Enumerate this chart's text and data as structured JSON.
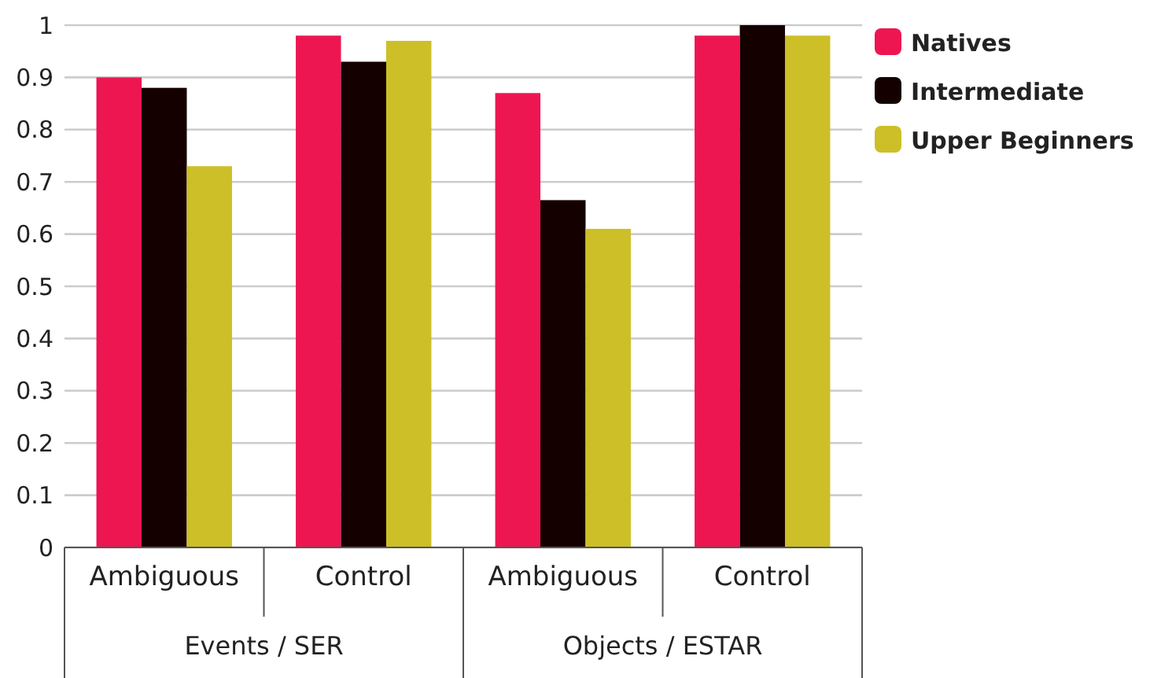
{
  "chart_data": {
    "type": "bar",
    "categories": [
      "Ambiguous",
      "Control",
      "Ambiguous",
      "Control"
    ],
    "series": [
      {
        "name": "Natives",
        "color": "#ed1651",
        "values": [
          0.9,
          0.98,
          0.87,
          0.98
        ]
      },
      {
        "name": "Intermediate",
        "color": "#150000",
        "values": [
          0.88,
          0.93,
          0.665,
          1.0
        ]
      },
      {
        "name": "Upper Beginners",
        "color": "#cdbf27",
        "values": [
          0.73,
          0.97,
          0.61,
          0.98
        ]
      }
    ],
    "ylim": [
      0,
      1
    ],
    "yticks": [
      0,
      0.1,
      0.2,
      0.3,
      0.4,
      0.5,
      0.6,
      0.7,
      0.8,
      0.9,
      1
    ],
    "grid": "y",
    "legend": "right",
    "annotations": [
      "Events / SER",
      "Objects / ESTAR"
    ]
  }
}
